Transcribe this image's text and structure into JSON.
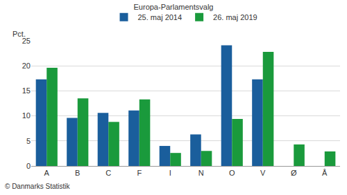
{
  "chart_data": {
    "type": "bar",
    "title": "Europa-Parlamentsvalg",
    "y_label": "Pct.",
    "source": "© Danmarks Statistik",
    "categories": [
      "A",
      "B",
      "C",
      "F",
      "I",
      "N",
      "O",
      "V",
      "Ø",
      "Å"
    ],
    "series": [
      {
        "name": "25. maj 2014",
        "color": "#1a5e9c",
        "values": [
          17.3,
          9.6,
          10.6,
          11.1,
          4.0,
          6.3,
          24.1,
          17.3,
          null,
          null
        ]
      },
      {
        "name": "26. maj 2019",
        "color": "#1a9a3c",
        "values": [
          19.6,
          13.5,
          8.8,
          13.3,
          2.6,
          3.0,
          9.4,
          22.8,
          4.3,
          2.9
        ]
      }
    ],
    "ylim": [
      0,
      25
    ],
    "yticks": [
      0,
      5,
      10,
      15,
      20,
      25
    ],
    "grid": true,
    "legend": "top"
  }
}
